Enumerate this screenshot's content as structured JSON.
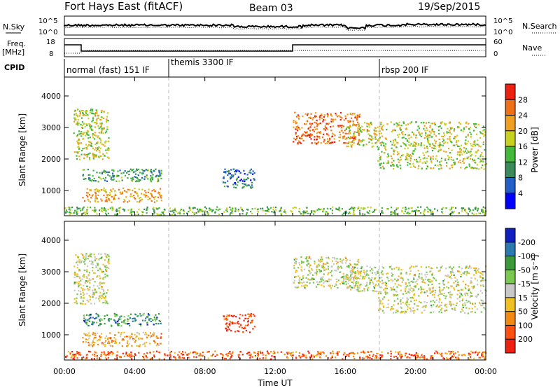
{
  "header": {
    "station": "Fort Hays East (fitACF)",
    "beam": "Beam 03",
    "date": "19/Sep/2015"
  },
  "strip": {
    "nsky_label": "N.Sky",
    "nsearch_label": "N.Search",
    "noise_ticks_left": [
      "10^5",
      "10^0"
    ],
    "noise_ticks_right": [
      "10^5",
      "10^0"
    ],
    "freq_label_1": "Freq.",
    "freq_label_2": "[MHz]",
    "freq_ticks": [
      "18",
      "8"
    ],
    "nave_label": "Nave",
    "nave_ticks": [
      "60",
      "0"
    ],
    "cpid_label": "CPID",
    "cpid_segments": [
      {
        "label": "normal (fast) 151 IF",
        "start_h": 0
      },
      {
        "label": "themis 3300 IF",
        "start_h": 6
      },
      {
        "label": "rbsp 200 IF",
        "start_h": 18
      }
    ]
  },
  "chart_data": [
    {
      "type": "heatmap",
      "name": "power",
      "ylabel": "Slant Range [km]",
      "ylim": [
        200,
        4600
      ],
      "yticks": [
        1000,
        2000,
        3000,
        4000
      ],
      "xlim": [
        0,
        24
      ],
      "colorbar": {
        "label": "Power [dB]",
        "ticks": [
          "4",
          "8",
          "12",
          "16",
          "20",
          "24",
          "28"
        ],
        "colors": [
          "#0000ff",
          "#2060c8",
          "#3a8a5a",
          "#44b83a",
          "#c8d020",
          "#f0a020",
          "#f07018",
          "#ee2010"
        ]
      },
      "regions": [
        {
          "x0": 0.5,
          "x1": 2.5,
          "y0": 2000,
          "y1": 3600,
          "level": 0.55
        },
        {
          "x0": 1.0,
          "x1": 5.5,
          "y0": 1300,
          "y1": 1700,
          "level": 0.35
        },
        {
          "x0": 1.0,
          "x1": 5.5,
          "y0": 650,
          "y1": 1100,
          "level": 0.7
        },
        {
          "x0": 9.0,
          "x1": 10.8,
          "y0": 1100,
          "y1": 1700,
          "level": 0.25
        },
        {
          "x0": 13.0,
          "x1": 16.8,
          "y0": 2500,
          "y1": 3500,
          "level": 0.8
        },
        {
          "x0": 16.0,
          "x1": 17.8,
          "y0": 2400,
          "y1": 3200,
          "level": 0.6
        },
        {
          "x0": 17.8,
          "x1": 24.0,
          "y0": 1700,
          "y1": 3200,
          "level": 0.55
        },
        {
          "x0": 0.0,
          "x1": 24.0,
          "y0": 250,
          "y1": 500,
          "level": 0.45
        }
      ]
    },
    {
      "type": "heatmap",
      "name": "velocity",
      "ylabel": "Slant Range [km]",
      "ylim": [
        200,
        4600
      ],
      "yticks": [
        1000,
        2000,
        3000,
        4000
      ],
      "xlim": [
        0,
        24
      ],
      "xlabel": "Time UT",
      "xtick_labels": [
        "00:00",
        "04:00",
        "08:00",
        "12:00",
        "16:00",
        "20:00",
        "00:00"
      ],
      "colorbar": {
        "label": "Velocity [m s⁻¹]",
        "ticks": [
          "200",
          "100",
          "50",
          "15",
          "-15",
          "-50",
          "-100",
          "-200"
        ],
        "colors": [
          "#ee2010",
          "#ff5010",
          "#f08a10",
          "#f0c020",
          "#c8c8c8",
          "#7ac850",
          "#3a9a3a",
          "#2a7ab0",
          "#1020c0"
        ]
      },
      "regions": [
        {
          "x0": 0.5,
          "x1": 2.5,
          "y0": 2000,
          "y1": 3600,
          "level": 0.5
        },
        {
          "x0": 1.0,
          "x1": 5.5,
          "y0": 1300,
          "y1": 1700,
          "level": 0.75
        },
        {
          "x0": 1.0,
          "x1": 5.5,
          "y0": 650,
          "y1": 1100,
          "level": 0.35
        },
        {
          "x0": 9.0,
          "x1": 10.8,
          "y0": 1100,
          "y1": 1700,
          "level": 0.12
        },
        {
          "x0": 13.0,
          "x1": 16.8,
          "y0": 2500,
          "y1": 3500,
          "level": 0.5
        },
        {
          "x0": 16.0,
          "x1": 17.8,
          "y0": 2400,
          "y1": 3200,
          "level": 0.5
        },
        {
          "x0": 17.8,
          "x1": 24.0,
          "y0": 1700,
          "y1": 3200,
          "level": 0.5
        },
        {
          "x0": 0.0,
          "x1": 24.0,
          "y0": 250,
          "y1": 500,
          "level": 0.2
        }
      ]
    }
  ]
}
